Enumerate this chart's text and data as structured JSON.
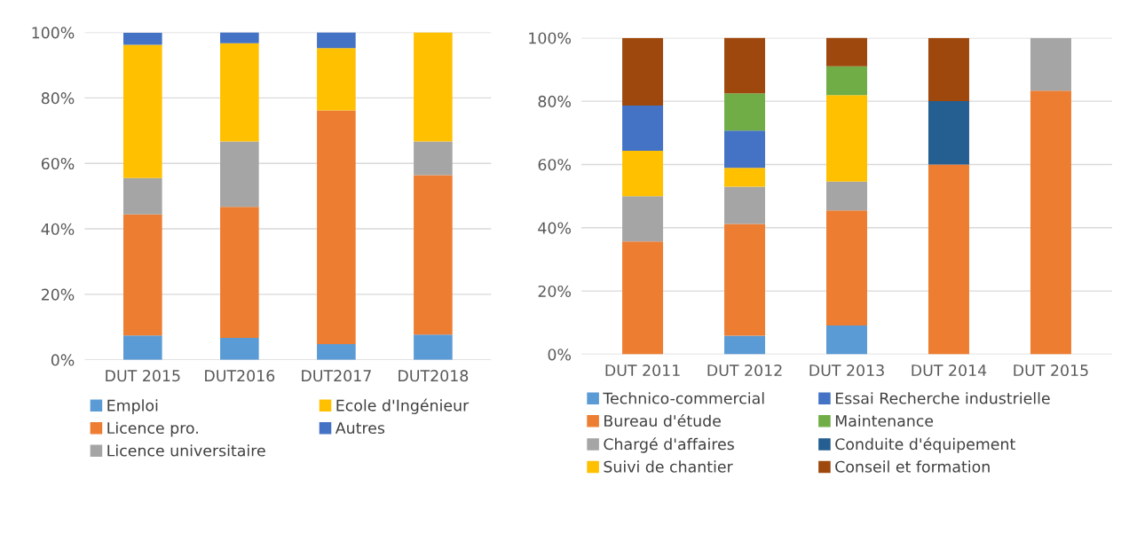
{
  "chart_data": [
    {
      "type": "bar",
      "stacked": true,
      "categories": [
        "DUT 2015",
        "DUT2016",
        "DUT2017",
        "DUT2018"
      ],
      "series": [
        {
          "name": "Emploi",
          "color": "#5b9bd5",
          "values": [
            7.4,
            6.7,
            4.8,
            7.7
          ]
        },
        {
          "name": "Licence pro.",
          "color": "#ed7d31",
          "values": [
            37.0,
            40.0,
            71.4,
            48.7
          ]
        },
        {
          "name": "Licence universitaire",
          "color": "#a5a5a5",
          "values": [
            11.1,
            20.0,
            0,
            10.3
          ]
        },
        {
          "name": "Ecole d'Ingénieur",
          "color": "#ffc000",
          "values": [
            40.7,
            30.0,
            19.0,
            33.3
          ]
        },
        {
          "name": "Autres",
          "color": "#4472c4",
          "values": [
            3.7,
            3.3,
            4.8,
            0
          ]
        }
      ],
      "ylim": [
        0,
        100
      ],
      "yticks": [
        {
          "value": 0,
          "label": "0%"
        },
        {
          "value": 20,
          "label": "20%"
        },
        {
          "value": 40,
          "label": "40%"
        },
        {
          "value": 60,
          "label": "60%"
        },
        {
          "value": 80,
          "label": "80%"
        },
        {
          "value": 100,
          "label": "100%"
        }
      ],
      "grid": "y",
      "legend": "bottom"
    },
    {
      "type": "bar",
      "stacked": true,
      "categories": [
        "DUT 2011",
        "DUT 2012",
        "DUT 2013",
        "DUT 2014",
        "DUT 2015"
      ],
      "series": [
        {
          "name": "Technico-commercial",
          "color": "#5b9bd5",
          "values": [
            0,
            5.9,
            9.1,
            0,
            0
          ]
        },
        {
          "name": "Bureau d'étude",
          "color": "#ed7d31",
          "values": [
            35.7,
            35.3,
            36.4,
            60.0,
            83.3
          ]
        },
        {
          "name": "Chargé d'affaires",
          "color": "#a5a5a5",
          "values": [
            14.3,
            11.8,
            9.1,
            0,
            16.7
          ]
        },
        {
          "name": "Suivi de chantier",
          "color": "#ffc000",
          "values": [
            14.3,
            5.9,
            27.3,
            0,
            0
          ]
        },
        {
          "name": "Essai Recherche industrielle",
          "color": "#4472c4",
          "values": [
            14.3,
            11.8,
            0,
            0,
            0
          ]
        },
        {
          "name": "Maintenance",
          "color": "#70ad47",
          "values": [
            0,
            11.8,
            9.1,
            0,
            0
          ]
        },
        {
          "name": "Conduite d'équipement",
          "color": "#255e91",
          "values": [
            0,
            0,
            0,
            20.0,
            0
          ]
        },
        {
          "name": "Conseil et formation",
          "color": "#9e480e",
          "values": [
            21.4,
            17.6,
            9.1,
            20.0,
            0
          ]
        }
      ],
      "ylim": [
        0,
        100
      ],
      "yticks": [
        {
          "value": 0,
          "label": "0%"
        },
        {
          "value": 20,
          "label": "20%"
        },
        {
          "value": 40,
          "label": "40%"
        },
        {
          "value": 60,
          "label": "60%"
        },
        {
          "value": 80,
          "label": "80%"
        },
        {
          "value": 100,
          "label": "100%"
        }
      ],
      "grid": "y",
      "legend": "bottom"
    }
  ]
}
